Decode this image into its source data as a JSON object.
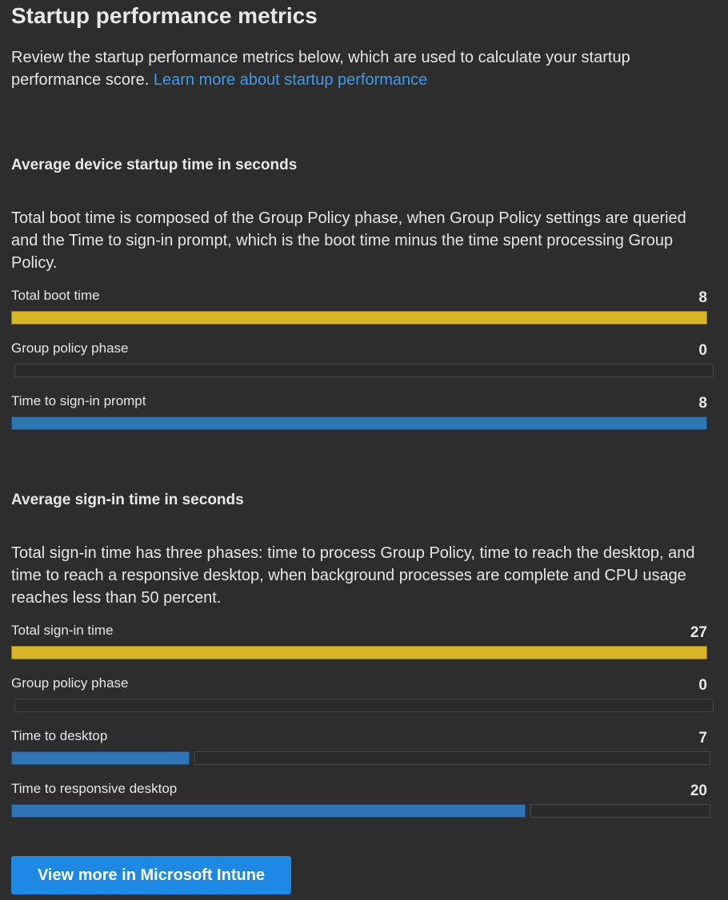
{
  "header": {
    "title": "Startup performance metrics",
    "intro_text": "Review the startup performance metrics below, which are used to calculate your startup performance score.",
    "learn_more_link": "Learn more about startup performance"
  },
  "startup_section": {
    "heading": "Average device startup time in seconds",
    "description": "Total boot time is composed of the Group Policy phase, when Group Policy settings are queried and the Time to sign-in prompt, which is the boot time minus the time spent processing Group Policy.",
    "max_value": 8,
    "metrics": [
      {
        "label": "Total boot time",
        "value": "8",
        "fraction": 1.0,
        "color": "#d8b526"
      },
      {
        "label": "Group policy phase",
        "value": "0",
        "fraction": 0.0,
        "color": "#2f74b5"
      },
      {
        "label": "Time to sign-in prompt",
        "value": "8",
        "fraction": 1.0,
        "color": "#2f74b5"
      }
    ]
  },
  "signin_section": {
    "heading": "Average sign-in time in seconds",
    "description": "Total sign-in time has three phases: time to process Group Policy, time to reach the desktop, and time to reach a responsive desktop, when background processes are complete and CPU usage reaches less than 50 percent.",
    "max_value": 27,
    "metrics": [
      {
        "label": "Total sign-in time",
        "value": "27",
        "fraction": 1.0,
        "color": "#d8b526"
      },
      {
        "label": "Group policy phase",
        "value": "0",
        "fraction": 0.0,
        "color": "#2f74b5"
      },
      {
        "label": "Time to desktop",
        "value": "7",
        "fraction": 0.259,
        "color": "#2f74b5"
      },
      {
        "label": "Time to responsive desktop",
        "value": "20",
        "fraction": 0.741,
        "color": "#2f74b5"
      }
    ]
  },
  "actions": {
    "view_more_label": "View more in Microsoft Intune"
  },
  "colors": {
    "background": "#2d2d2d",
    "accent_link": "#3b9cf0",
    "total_bar": "#d8b526",
    "phase_bar": "#2f74b5",
    "button": "#1e88e5"
  }
}
